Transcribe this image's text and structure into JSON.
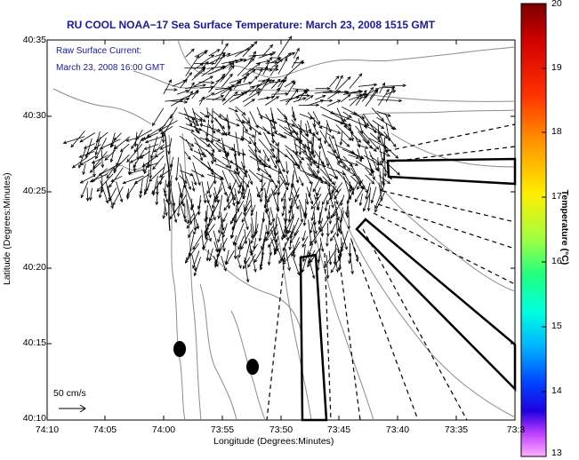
{
  "title": "RU COOL  NOAA−17  Sea Surface Temperature:  March 23, 2008 1515 GMT",
  "current_note": {
    "line1": "Raw Surface Current:",
    "line2": "March 23, 2008 16:00 GMT"
  },
  "axes": {
    "xlabel": "Longitude (Degrees:Minutes)",
    "ylabel": "Latitude (Degrees:Minutes)",
    "x_ticks": [
      "74:10",
      "74:05",
      "74:00",
      "73:55",
      "73:50",
      "73:45",
      "73:40",
      "73:35",
      "73:3"
    ],
    "y_ticks": [
      "40:35",
      "40:30",
      "40:25",
      "40:20",
      "40:15",
      "40:10"
    ]
  },
  "colorbar": {
    "label": "Temperature (°C)",
    "ticks": [
      "20",
      "19",
      "18",
      "17",
      "16",
      "15",
      "14",
      "13"
    ],
    "min": 13,
    "max": 20
  },
  "scale_arrow": {
    "label": "50 cm/s"
  },
  "colors": {
    "title": "#1a1aa0",
    "contour": "#8c8c8c",
    "vector": "#000000"
  }
}
